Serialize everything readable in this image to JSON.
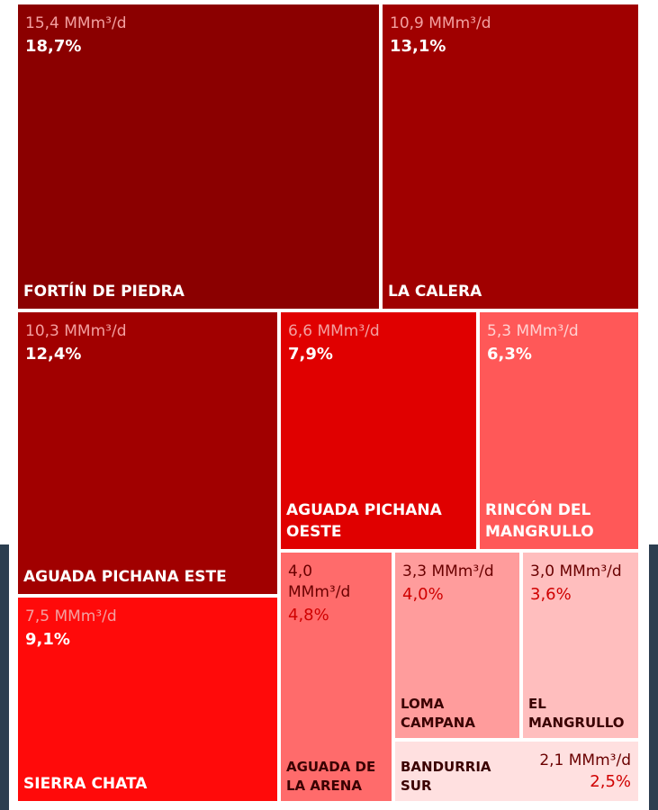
{
  "chart_data": {
    "type": "treemap",
    "categories": [
      "FORTÍN DE PIEDRA",
      "LA CALERA",
      "AGUADA PICHANA ESTE",
      "AGUADA PICHANA OESTE",
      "RINCÓN DEL MANGRULLO",
      "SIERRA CHATA",
      "AGUADA DE LA ARENA",
      "LOMA CAMPANA",
      "EL MANGRULLO",
      "BANDURRIA SUR"
    ],
    "values": [
      15.4,
      10.9,
      10.3,
      6.6,
      5.3,
      7.5,
      4.0,
      3.3,
      3.0,
      2.1
    ],
    "value_labels": [
      "15,4 MMm³/d",
      "10,9 MMm³/d",
      "10,3 MMm³/d",
      "6,6 MMm³/d",
      "5,3 MMm³/d",
      "7,5 MMm³/d",
      "4,0 MMm³/d",
      "3,3 MMm³/d",
      "3,0 MMm³/d",
      "2,1 MMm³/d"
    ],
    "shares": [
      18.7,
      13.1,
      12.4,
      7.9,
      6.3,
      9.1,
      4.8,
      4.0,
      3.6,
      2.5
    ],
    "share_labels": [
      "18,7%",
      "13,1%",
      "12,4%",
      "7,9%",
      "6,3%",
      "9,1%",
      "4,8%",
      "4,0%",
      "3,6%",
      "2,5%"
    ],
    "colors": [
      "#8b0000",
      "#a00000",
      "#a10000",
      "#e00000",
      "#ff5858",
      "#ff0a0a",
      "#ff6b6b",
      "#ff9c9c",
      "#ffbebe",
      "#ffe0e0"
    ]
  }
}
